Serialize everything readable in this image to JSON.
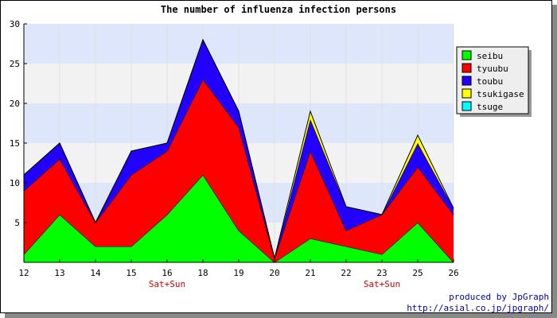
{
  "chart_data": {
    "type": "area",
    "stacked": true,
    "title": "The number of influenza infection persons",
    "xlabel": "",
    "ylabel": "",
    "categories": [
      "12",
      "13",
      "14",
      "15",
      "16",
      "18",
      "19",
      "20",
      "21",
      "22",
      "23",
      "25",
      "26"
    ],
    "category_annotations": [
      {
        "category": "16",
        "text": "Sat+Sun"
      },
      {
        "category": "23",
        "text": "Sat+Sun"
      }
    ],
    "ylim": [
      0,
      30
    ],
    "yticks": [
      5,
      10,
      15,
      20,
      25,
      30
    ],
    "grid": true,
    "legend_position": "top-right",
    "series": [
      {
        "name": "seibu",
        "color": "#00ff00",
        "values": [
          1,
          6,
          2,
          2,
          6,
          11,
          4,
          0,
          3,
          2,
          1,
          5,
          0
        ]
      },
      {
        "name": "tyuubu",
        "color": "#ff0000",
        "values": [
          8,
          7,
          3,
          9,
          8,
          12,
          13,
          0.5,
          11,
          2,
          5,
          7,
          6
        ]
      },
      {
        "name": "toubu",
        "color": "#2200ff",
        "values": [
          2,
          2,
          0,
          3,
          1,
          5,
          2,
          0,
          4,
          3,
          0,
          3,
          0.8
        ]
      },
      {
        "name": "tsukigase",
        "color": "#ffff00",
        "values": [
          0,
          0,
          0,
          0,
          0,
          0,
          0,
          0,
          1,
          0,
          0,
          1,
          0
        ]
      },
      {
        "name": "tsuge",
        "color": "#00ffff",
        "values": [
          0,
          0,
          0,
          0,
          0,
          0,
          0,
          0,
          0,
          0,
          0,
          0,
          0
        ]
      }
    ]
  },
  "footer": {
    "credit": "produced by JpGraph",
    "url": "http://asial.co.jp/jpgraph/"
  },
  "colors": {
    "band_blue": "#dde6fb",
    "band_gray": "#f2f2f2",
    "annotation": "#cc0000",
    "footer": "#0000aa"
  }
}
